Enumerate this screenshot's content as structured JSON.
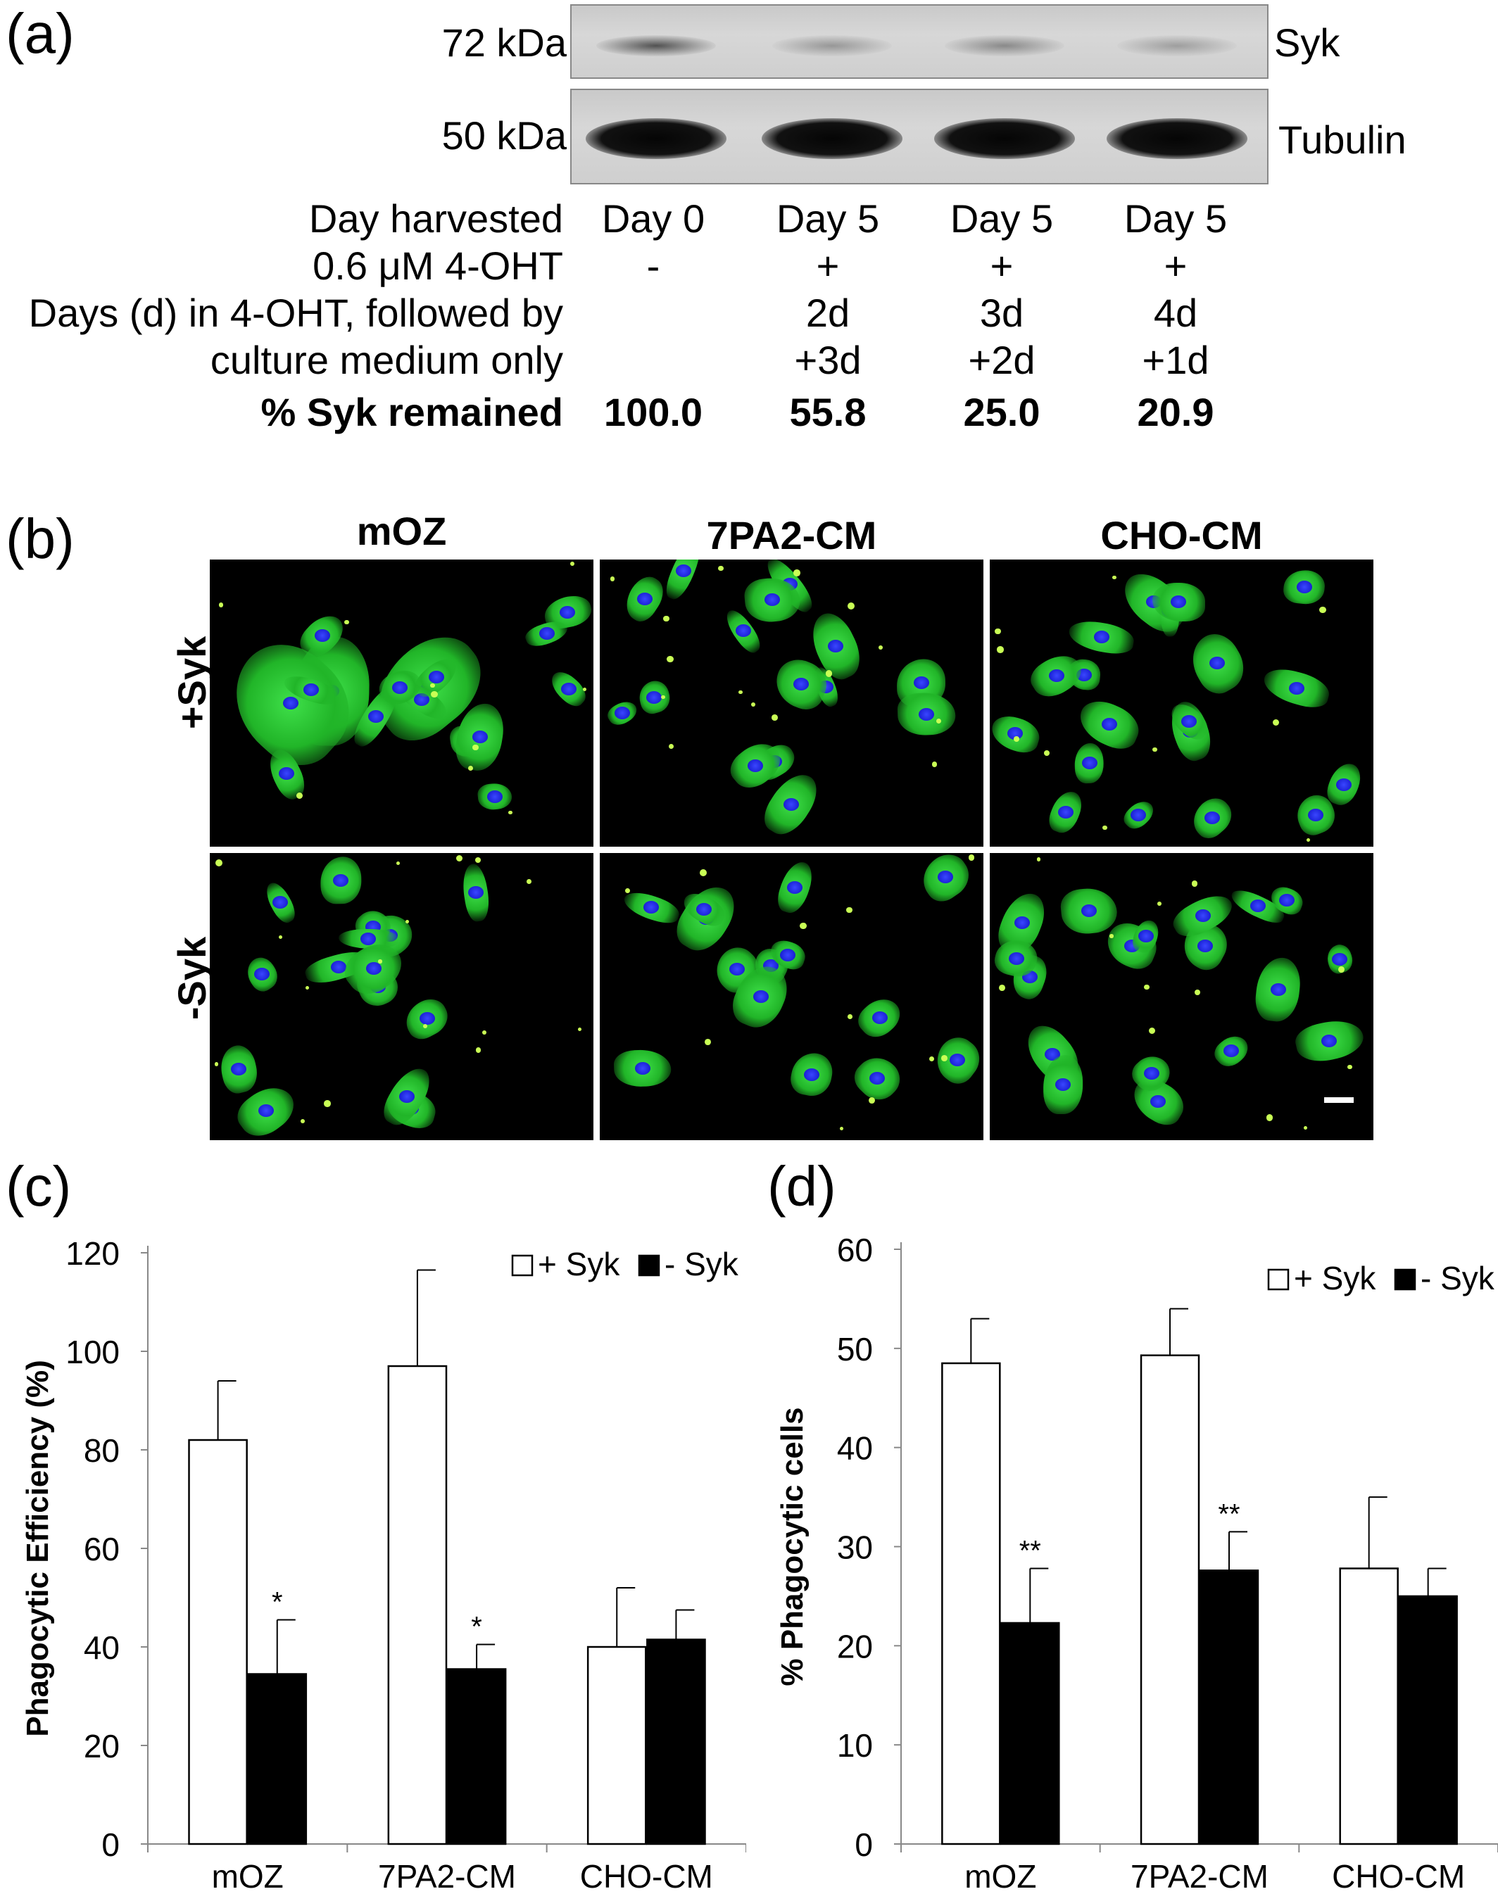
{
  "panel_a": {
    "letter": "(a)",
    "markers": [
      "72 kDa",
      "50 kDa"
    ],
    "proteins": [
      "Syk",
      "Tubulin"
    ],
    "rows": [
      {
        "label": "Day harvested",
        "bold": false,
        "values": [
          "Day 0",
          "Day 5",
          "Day 5",
          "Day 5"
        ]
      },
      {
        "label": "0.6 μM 4-OHT",
        "bold": false,
        "values": [
          "-",
          "+",
          "+",
          "+"
        ]
      },
      {
        "label": "Days (d) in 4-OHT, followed by",
        "bold": false,
        "values": [
          "",
          "2d",
          "3d",
          "4d"
        ]
      },
      {
        "label": "culture medium only",
        "bold": false,
        "values": [
          "",
          "+3d",
          "+2d",
          "+1d"
        ]
      },
      {
        "label": "% Syk remained",
        "bold": true,
        "values": [
          "100.0",
          "55.8",
          "25.0",
          "20.9"
        ]
      }
    ],
    "syk_band_intensity": [
      0.85,
      0.35,
      0.45,
      0.3
    ]
  },
  "panel_b": {
    "letter": "(b)",
    "columns": [
      "mOZ",
      "7PA2-CM",
      "CHO-CM"
    ],
    "rows": [
      "+Syk",
      "-Syk"
    ]
  },
  "chart_data": [
    {
      "type": "bar",
      "panel": "(c)",
      "categories": [
        "mOZ",
        "7PA2-CM",
        "CHO-CM"
      ],
      "ylabel": "Phagocytic Efficiency (%)",
      "ylim": [
        0,
        120
      ],
      "yticks": [
        0,
        20,
        40,
        60,
        80,
        100,
        120
      ],
      "legend": [
        "+ Syk",
        "- Syk"
      ],
      "legend_position": "top-right",
      "series": [
        {
          "name": "+ Syk",
          "values": [
            82,
            97,
            40
          ],
          "errors": [
            12,
            19.5,
            12
          ],
          "color": "#ffffff",
          "markers": [
            "",
            "",
            ""
          ]
        },
        {
          "name": "- Syk",
          "values": [
            34.5,
            35.5,
            41.5
          ],
          "errors": [
            11,
            5,
            6
          ],
          "color": "#000000",
          "markers": [
            "*",
            "*",
            ""
          ]
        }
      ]
    },
    {
      "type": "bar",
      "panel": "(d)",
      "categories": [
        "mOZ",
        "7PA2-CM",
        "CHO-CM"
      ],
      "ylabel": "% Phagocytic cells",
      "ylim": [
        0,
        60
      ],
      "yticks": [
        0,
        10,
        20,
        30,
        40,
        50,
        60
      ],
      "legend": [
        "+ Syk",
        "- Syk"
      ],
      "legend_position": "top-right",
      "series": [
        {
          "name": "+ Syk",
          "values": [
            48.5,
            49.3,
            27.8
          ],
          "errors": [
            4.5,
            4.7,
            7.2
          ],
          "color": "#ffffff",
          "markers": [
            "",
            "",
            ""
          ]
        },
        {
          "name": "- Syk",
          "values": [
            22.3,
            27.6,
            25
          ],
          "errors": [
            5.5,
            3.9,
            2.8
          ],
          "color": "#000000",
          "markers": [
            "**",
            "**",
            ""
          ]
        }
      ]
    }
  ]
}
